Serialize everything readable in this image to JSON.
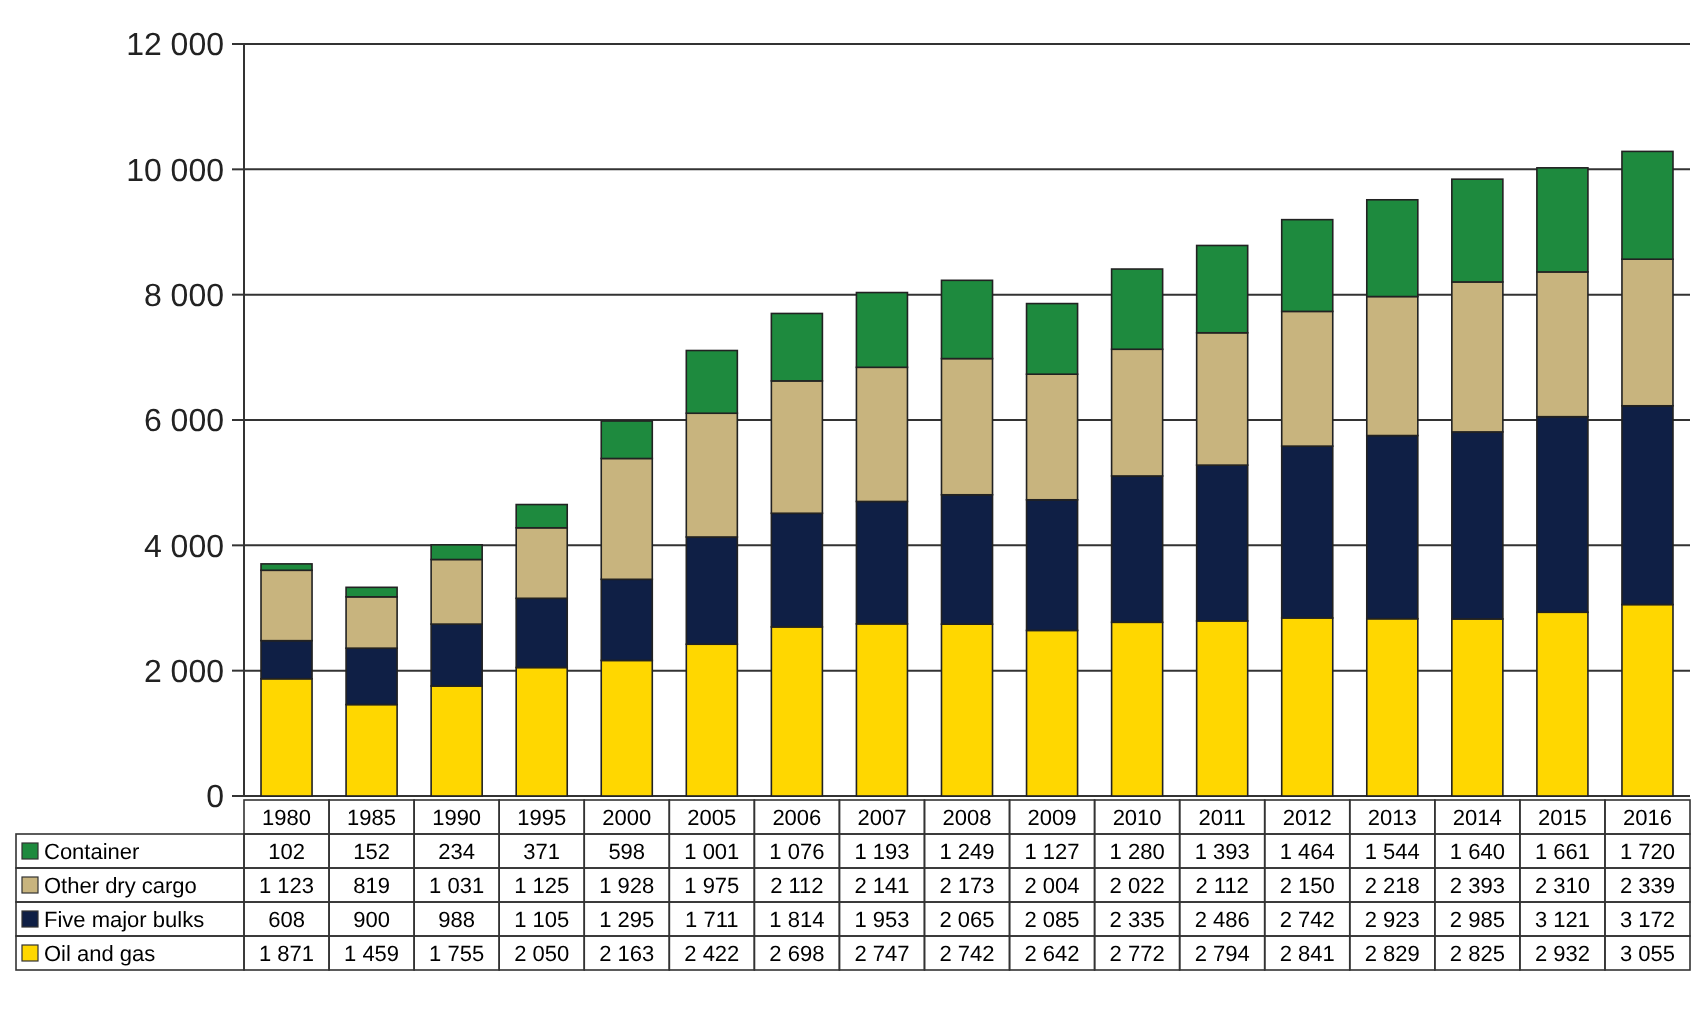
{
  "chart_data": {
    "type": "bar",
    "stacked": true,
    "categories": [
      "1980",
      "1985",
      "1990",
      "1995",
      "2000",
      "2005",
      "2006",
      "2007",
      "2008",
      "2009",
      "2010",
      "2011",
      "2012",
      "2013",
      "2014",
      "2015",
      "2016"
    ],
    "series": [
      {
        "name": "Oil and gas",
        "color": "#ffd700",
        "values": [
          1871,
          1459,
          1755,
          2050,
          2163,
          2422,
          2698,
          2747,
          2742,
          2642,
          2772,
          2794,
          2841,
          2829,
          2825,
          2932,
          3055
        ]
      },
      {
        "name": "Five major bulks",
        "color": "#0f1f45",
        "values": [
          608,
          900,
          988,
          1105,
          1295,
          1711,
          1814,
          1953,
          2065,
          2085,
          2335,
          2486,
          2742,
          2923,
          2985,
          3121,
          3172
        ]
      },
      {
        "name": "Other dry cargo",
        "color": "#c8b47e",
        "values": [
          1123,
          819,
          1031,
          1125,
          1928,
          1975,
          2112,
          2141,
          2173,
          2004,
          2022,
          2112,
          2150,
          2218,
          2393,
          2310,
          2339
        ]
      },
      {
        "name": "Container",
        "color": "#1e8a3e",
        "values": [
          102,
          152,
          234,
          371,
          598,
          1001,
          1076,
          1193,
          1249,
          1127,
          1280,
          1393,
          1464,
          1544,
          1640,
          1661,
          1720
        ]
      }
    ],
    "value_labels": [
      [
        "1 871",
        "1 459",
        "1 755",
        "2 050",
        "2 163",
        "2 422",
        "2 698",
        "2 747",
        "2 742",
        "2 642",
        "2 772",
        "2 794",
        "2 841",
        "2 829",
        "2 825",
        "2 932",
        "3 055"
      ],
      [
        "608",
        "900",
        "988",
        "1 105",
        "1 295",
        "1 711",
        "1 814",
        "1 953",
        "2 065",
        "2 085",
        "2 335",
        "2 486",
        "2 742",
        "2 923",
        "2 985",
        "3 121",
        "3 172"
      ],
      [
        "1 123",
        "819",
        "1 031",
        "1 125",
        "1 928",
        "1 975",
        "2 112",
        "2 141",
        "2 173",
        "2 004",
        "2 022",
        "2 112",
        "2 150",
        "2 218",
        "2 393",
        "2 310",
        "2 339"
      ],
      [
        "102",
        "152",
        "234",
        "371",
        "598",
        "1 001",
        "1 076",
        "1 193",
        "1 249",
        "1 127",
        "1 280",
        "1 393",
        "1 464",
        "1 544",
        "1 640",
        "1 661",
        "1 720"
      ]
    ],
    "ylim": [
      0,
      12000
    ],
    "yticks": [
      {
        "value": 0,
        "label": "0"
      },
      {
        "value": 2000,
        "label": "2 000"
      },
      {
        "value": 4000,
        "label": "4 000"
      },
      {
        "value": 6000,
        "label": "6 000"
      },
      {
        "value": 8000,
        "label": "8 000"
      },
      {
        "value": 10000,
        "label": "10 000"
      },
      {
        "value": 12000,
        "label": "12 000"
      }
    ],
    "grid": "y",
    "legend": "bottom left"
  }
}
